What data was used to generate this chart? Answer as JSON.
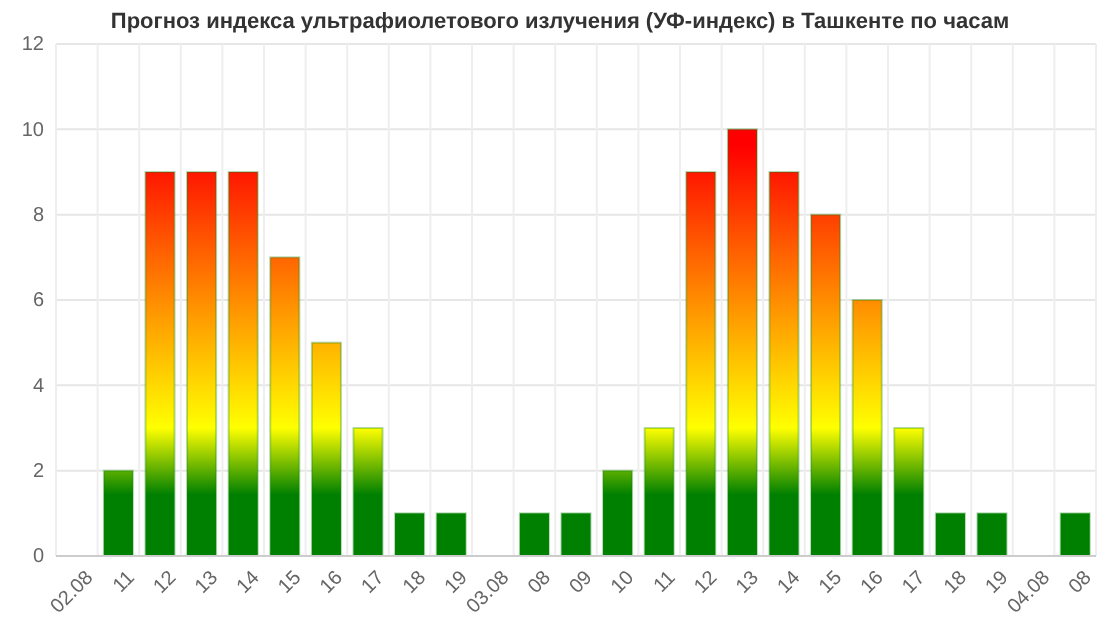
{
  "chart_data": {
    "type": "bar",
    "title": "Прогноз индекса ультрафиолетового излучения (УФ-индекс) в Ташкенте по часам",
    "categories": [
      "02.08",
      "11",
      "12",
      "13",
      "14",
      "15",
      "16",
      "17",
      "18",
      "19",
      "03.08",
      "08",
      "09",
      "10",
      "11",
      "12",
      "13",
      "14",
      "15",
      "16",
      "17",
      "18",
      "19",
      "04.08",
      "08"
    ],
    "values": [
      null,
      2,
      9,
      9,
      9,
      7,
      5,
      3,
      1,
      1,
      null,
      1,
      1,
      2,
      3,
      9,
      10,
      9,
      8,
      6,
      3,
      1,
      1,
      null,
      1
    ],
    "color": "#008000",
    "ylim": [
      0,
      12
    ],
    "yticks": [
      0,
      2,
      4,
      6,
      8,
      10,
      12
    ],
    "grid": true
  }
}
